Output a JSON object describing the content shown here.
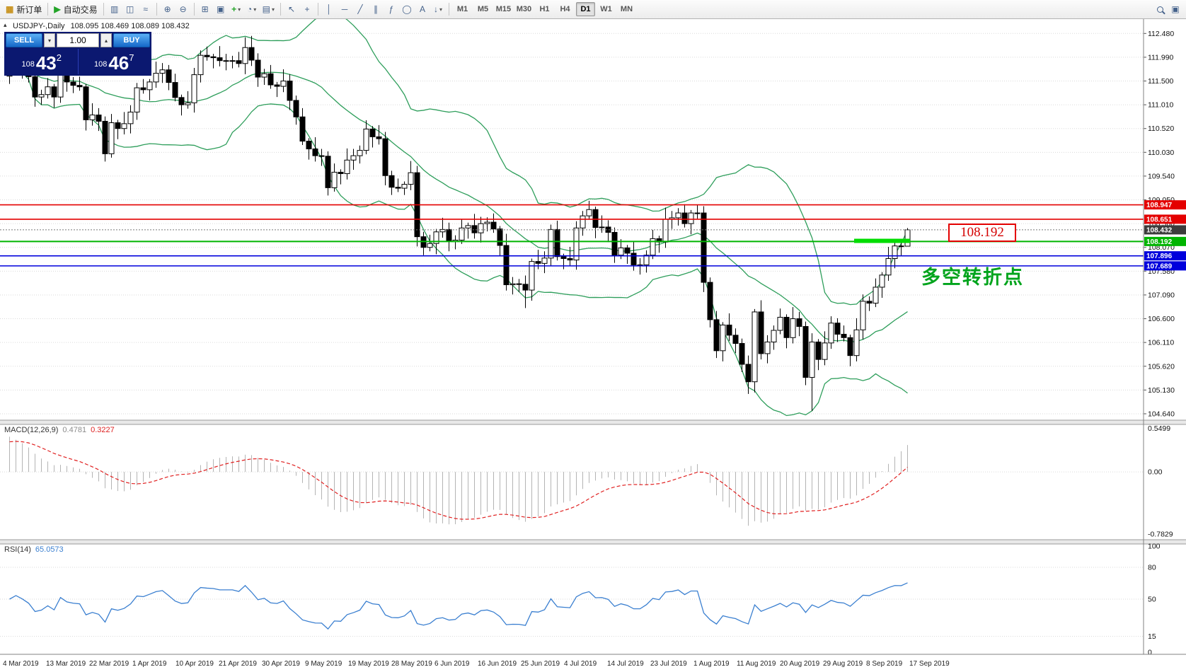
{
  "icons": {
    "dropdown": "▾",
    "spin_up": "▴",
    "panel_toggle": "▴",
    "community": "▣"
  },
  "toolbar": {
    "timeframes": [
      "M1",
      "M5",
      "M15",
      "M30",
      "H1",
      "H4",
      "D1",
      "W1",
      "MN"
    ],
    "active_timeframe": "D1",
    "tool_buttons": [
      {
        "name": "new-order-button",
        "glyph": "▦",
        "color": "#c79018",
        "label": "新订单"
      },
      {
        "sep": true
      },
      {
        "name": "autotrading-button",
        "glyph": "▶",
        "color": "#23a428",
        "label": "自动交易"
      },
      {
        "sep": true
      },
      {
        "name": "bar-chart-button",
        "glyph": "▥"
      },
      {
        "name": "candlestick-chart-button",
        "glyph": "◫"
      },
      {
        "name": "line-chart-button",
        "glyph": "≈"
      },
      {
        "sep": true
      },
      {
        "name": "zoom-in-button",
        "glyph": "⊕"
      },
      {
        "name": "zoom-out-button",
        "glyph": "⊖"
      },
      {
        "sep": true
      },
      {
        "name": "tile-windows-button",
        "glyph": "⊞"
      },
      {
        "name": "auto-arrange-button",
        "glyph": "▣"
      },
      {
        "name": "indicators-button",
        "glyph": "+",
        "color": "#23a428",
        "dropdown": true
      },
      {
        "name": "periods-button",
        "glyph": "◔",
        "dropdown": true
      },
      {
        "name": "templates-button",
        "glyph": "▤",
        "dropdown": true
      },
      {
        "sep": true
      },
      {
        "name": "cursor-button",
        "glyph": "↖"
      },
      {
        "name": "crosshair-button",
        "glyph": "+"
      },
      {
        "sep": true
      },
      {
        "name": "vertical-line-button",
        "glyph": "│"
      },
      {
        "name": "horizontal-line-button",
        "glyph": "─"
      },
      {
        "name": "trendline-button",
        "glyph": "╱"
      },
      {
        "name": "channel-button",
        "glyph": "∥"
      },
      {
        "name": "fibonacci-button",
        "glyph": "ƒ"
      },
      {
        "name": "shapes-button",
        "glyph": "◯"
      },
      {
        "name": "text-button",
        "glyph": "A"
      },
      {
        "name": "arrows-button",
        "glyph": "↓",
        "dropdown": true
      },
      {
        "sep": true
      }
    ]
  },
  "chart": {
    "symbol_title": "USDJPY-,Daily",
    "ohlc_text": "108.095 108.469 108.089 108.432",
    "annotation": "多空转折点",
    "price_label_box": "108.192",
    "trade_panel": {
      "sell_label": "SELL",
      "buy_label": "BUY",
      "volume": "1.00",
      "sell_small": "108",
      "sell_big": "43",
      "sell_sup": "2",
      "buy_small": "108",
      "buy_big": "46",
      "buy_sup": "7"
    }
  },
  "chart_data": {
    "type": "candlest­ick",
    "symbol": "USDJPY",
    "period": "Daily",
    "price_axis_ticks": [
      "112.480",
      "111.990",
      "111.500",
      "111.010",
      "110.520",
      "110.030",
      "109.540",
      "109.050",
      "108.560",
      "108.070",
      "107.580",
      "107.090",
      "106.600",
      "106.110",
      "105.620",
      "105.130",
      "104.640"
    ],
    "date_axis": [
      "4 Mar 2019",
      "13 Mar 2019",
      "22 Mar 2019",
      "1 Apr 2019",
      "10 Apr 2019",
      "21 Apr 2019",
      "30 Apr 2019",
      "9 May 2019",
      "19 May 2019",
      "28 May 2019",
      "6 Jun 2019",
      "16 Jun 2019",
      "25 Jun 2019",
      "4 Jul 2019",
      "14 Jul 2019",
      "23 Jul 2019",
      "1 Aug 2019",
      "11 Aug 2019",
      "20 Aug 2019",
      "29 Aug 2019",
      "8 Sep 2019",
      "17 Sep 2019"
    ],
    "hlines": [
      {
        "price": 108.947,
        "color": "#e40000",
        "label": "108.947",
        "width": 1.6
      },
      {
        "price": 108.651,
        "color": "#e40000",
        "label": "108.651",
        "width": 1.6
      },
      {
        "price": 108.192,
        "color": "#00b400",
        "label": "108.192",
        "width": 2
      },
      {
        "price": 107.896,
        "color": "#0000dc",
        "label": "107.896",
        "width": 1.6
      },
      {
        "price": 107.689,
        "color": "#0000dc",
        "label": "107.689",
        "width": 1.6
      }
    ],
    "current_price": {
      "value": 108.432,
      "label": "108.432"
    },
    "green_segment": {
      "price": 108.205,
      "from_candle": 133,
      "to_candle": 141,
      "color": "#00dd00",
      "width": 6
    },
    "bollinger": {
      "period": 20,
      "deviation": 2,
      "color": "#2e9e5b"
    },
    "macd": {
      "label": "MACD(12,26,9)",
      "value_main": "0.4781",
      "value_signal": "0.3227",
      "axis": [
        "0.5499",
        "0.00",
        "-0.7829"
      ]
    },
    "rsi": {
      "label": "RSI(14)",
      "value": "65.0573",
      "color": "#3a7fd0",
      "levels": [
        80,
        50,
        15
      ],
      "axis": [
        "100",
        "80",
        "50",
        "15",
        "0"
      ]
    },
    "candles": [
      [
        111.6,
        111.85,
        111.44,
        111.75
      ],
      [
        111.75,
        112.08,
        111.67,
        111.9
      ],
      [
        111.9,
        111.96,
        111.55,
        111.77
      ],
      [
        111.77,
        112.01,
        111.47,
        111.59
      ],
      [
        111.59,
        111.73,
        110.97,
        111.17
      ],
      [
        111.17,
        111.32,
        111.01,
        111.22
      ],
      [
        111.22,
        111.56,
        111.14,
        111.38
      ],
      [
        111.38,
        111.44,
        110.95,
        111.17
      ],
      [
        111.17,
        111.94,
        111.05,
        111.7
      ],
      [
        111.7,
        111.84,
        111.28,
        111.48
      ],
      [
        111.48,
        111.58,
        111.25,
        111.41
      ],
      [
        111.41,
        111.59,
        111.3,
        111.38
      ],
      [
        111.38,
        111.44,
        110.48,
        110.7
      ],
      [
        110.7,
        111.04,
        110.58,
        110.8
      ],
      [
        110.8,
        110.94,
        110.47,
        110.67
      ],
      [
        110.67,
        110.77,
        109.84,
        110.0
      ],
      [
        110.0,
        110.82,
        109.92,
        110.64
      ],
      [
        110.64,
        110.7,
        110.3,
        110.52
      ],
      [
        110.52,
        110.86,
        110.4,
        110.62
      ],
      [
        110.62,
        111.0,
        110.42,
        110.86
      ],
      [
        110.86,
        111.46,
        110.7,
        111.36
      ],
      [
        111.36,
        111.54,
        111.24,
        111.32
      ],
      [
        111.32,
        111.54,
        111.1,
        111.48
      ],
      [
        111.48,
        111.9,
        111.36,
        111.66
      ],
      [
        111.66,
        111.87,
        111.46,
        111.73
      ],
      [
        111.73,
        111.83,
        111.31,
        111.47
      ],
      [
        111.47,
        111.65,
        111.08,
        111.16
      ],
      [
        111.16,
        111.22,
        110.79,
        111.01
      ],
      [
        111.01,
        111.29,
        110.93,
        111.05
      ],
      [
        111.05,
        111.77,
        110.85,
        111.63
      ],
      [
        111.63,
        112.13,
        111.47,
        112.03
      ],
      [
        112.03,
        112.21,
        111.92,
        112.0
      ],
      [
        112.0,
        112.06,
        111.76,
        111.98
      ],
      [
        111.98,
        112.22,
        111.8,
        111.92
      ],
      [
        111.92,
        112.06,
        111.72,
        111.92
      ],
      [
        111.92,
        112.02,
        111.76,
        111.92
      ],
      [
        111.92,
        112.1,
        111.78,
        111.86
      ],
      [
        111.86,
        112.4,
        111.64,
        112.19
      ],
      [
        112.19,
        112.43,
        111.81,
        111.93
      ],
      [
        111.93,
        112.07,
        111.38,
        111.58
      ],
      [
        111.58,
        111.75,
        111.42,
        111.65
      ],
      [
        111.65,
        111.83,
        111.34,
        111.42
      ],
      [
        111.42,
        111.48,
        111.17,
        111.39
      ],
      [
        111.39,
        111.74,
        111.27,
        111.5
      ],
      [
        111.5,
        111.64,
        110.9,
        111.1
      ],
      [
        111.1,
        111.2,
        110.6,
        110.76
      ],
      [
        110.76,
        110.94,
        110.18,
        110.26
      ],
      [
        110.26,
        110.32,
        109.88,
        110.1
      ],
      [
        110.1,
        110.34,
        109.84,
        109.96
      ],
      [
        109.96,
        110.1,
        109.75,
        109.95
      ],
      [
        109.95,
        110.05,
        109.14,
        109.3
      ],
      [
        109.3,
        109.8,
        109.22,
        109.62
      ],
      [
        109.62,
        109.68,
        109.37,
        109.59
      ],
      [
        109.59,
        110.11,
        109.47,
        109.87
      ],
      [
        109.87,
        110.1,
        109.67,
        109.96
      ],
      [
        109.96,
        110.17,
        109.8,
        110.07
      ],
      [
        110.07,
        110.69,
        109.99,
        110.51
      ],
      [
        110.51,
        110.57,
        110.13,
        110.35
      ],
      [
        110.35,
        110.59,
        110.19,
        110.31
      ],
      [
        110.31,
        110.45,
        109.35,
        109.55
      ],
      [
        109.55,
        109.65,
        109.15,
        109.31
      ],
      [
        109.31,
        109.49,
        109.21,
        109.29
      ],
      [
        109.29,
        109.43,
        109.15,
        109.37
      ],
      [
        109.37,
        109.85,
        109.25,
        109.61
      ],
      [
        109.61,
        109.75,
        108.09,
        108.29
      ],
      [
        108.29,
        108.39,
        107.91,
        108.07
      ],
      [
        108.07,
        108.33,
        107.99,
        108.15
      ],
      [
        108.15,
        108.45,
        107.93,
        108.39
      ],
      [
        108.39,
        108.68,
        108.27,
        108.44
      ],
      [
        108.44,
        108.58,
        107.99,
        108.19
      ],
      [
        108.19,
        108.32,
        108.03,
        108.22
      ],
      [
        108.22,
        108.65,
        108.14,
        108.47
      ],
      [
        108.47,
        108.58,
        108.25,
        108.52
      ],
      [
        108.52,
        108.76,
        108.25,
        108.37
      ],
      [
        108.37,
        108.7,
        108.17,
        108.56
      ],
      [
        108.56,
        108.69,
        108.4,
        108.59
      ],
      [
        108.59,
        108.77,
        108.37,
        108.45
      ],
      [
        108.45,
        108.51,
        107.89,
        108.11
      ],
      [
        108.11,
        108.35,
        107.18,
        107.3
      ],
      [
        107.3,
        107.46,
        107.1,
        107.32
      ],
      [
        107.32,
        107.42,
        107.15,
        107.31
      ],
      [
        107.31,
        107.49,
        106.82,
        107.19
      ],
      [
        107.19,
        107.84,
        106.97,
        107.78
      ],
      [
        107.78,
        108.02,
        107.62,
        107.74
      ],
      [
        107.74,
        107.99,
        107.54,
        107.85
      ],
      [
        107.85,
        108.54,
        107.69,
        108.44
      ],
      [
        108.44,
        108.62,
        107.8,
        107.88
      ],
      [
        107.88,
        107.94,
        107.62,
        107.84
      ],
      [
        107.84,
        108.08,
        107.69,
        107.81
      ],
      [
        107.81,
        108.61,
        107.61,
        108.47
      ],
      [
        108.47,
        108.82,
        108.31,
        108.72
      ],
      [
        108.72,
        109.03,
        108.64,
        108.85
      ],
      [
        108.85,
        108.91,
        108.26,
        108.48
      ],
      [
        108.48,
        108.73,
        108.37,
        108.49
      ],
      [
        108.49,
        108.63,
        108.18,
        108.38
      ],
      [
        108.38,
        108.48,
        107.75,
        107.91
      ],
      [
        107.91,
        108.24,
        107.83,
        108.06
      ],
      [
        108.06,
        108.12,
        107.73,
        107.95
      ],
      [
        107.95,
        108.19,
        107.59,
        107.71
      ],
      [
        107.71,
        107.85,
        107.51,
        107.71
      ],
      [
        107.71,
        108.01,
        107.55,
        107.91
      ],
      [
        107.91,
        108.43,
        107.83,
        108.25
      ],
      [
        108.25,
        108.31,
        107.96,
        108.18
      ],
      [
        108.18,
        108.89,
        108.06,
        108.65
      ],
      [
        108.65,
        108.82,
        108.45,
        108.68
      ],
      [
        108.68,
        108.88,
        108.52,
        108.78
      ],
      [
        108.78,
        108.96,
        108.48,
        108.56
      ],
      [
        108.56,
        108.84,
        108.34,
        108.78
      ],
      [
        108.78,
        108.95,
        108.66,
        108.78
      ],
      [
        108.78,
        108.92,
        107.15,
        107.35
      ],
      [
        107.35,
        107.45,
        106.42,
        106.58
      ],
      [
        106.58,
        106.76,
        105.79,
        105.94
      ],
      [
        105.94,
        106.53,
        105.72,
        106.47
      ],
      [
        106.47,
        106.71,
        106.14,
        106.26
      ],
      [
        106.26,
        106.4,
        105.89,
        106.09
      ],
      [
        106.09,
        106.19,
        105.5,
        105.66
      ],
      [
        105.66,
        105.84,
        105.05,
        105.3
      ],
      [
        105.3,
        106.8,
        105.08,
        106.74
      ],
      [
        106.74,
        106.98,
        105.76,
        105.88
      ],
      [
        105.88,
        106.26,
        105.68,
        106.12
      ],
      [
        106.12,
        106.46,
        105.96,
        106.36
      ],
      [
        106.36,
        106.81,
        106.28,
        106.63
      ],
      [
        106.63,
        106.69,
        105.99,
        106.21
      ],
      [
        106.21,
        106.84,
        106.09,
        106.6
      ],
      [
        106.6,
        106.74,
        106.24,
        106.44
      ],
      [
        106.44,
        106.54,
        105.23,
        105.39
      ],
      [
        105.39,
        106.3,
        104.7,
        106.12
      ],
      [
        106.12,
        106.18,
        105.54,
        105.76
      ],
      [
        105.76,
        106.34,
        105.64,
        106.1
      ],
      [
        106.1,
        106.65,
        105.98,
        106.51
      ],
      [
        106.51,
        106.61,
        106.12,
        106.28
      ],
      [
        106.28,
        106.46,
        106.13,
        106.21
      ],
      [
        106.21,
        106.27,
        105.62,
        105.84
      ],
      [
        105.84,
        106.61,
        105.72,
        106.37
      ],
      [
        106.37,
        107.1,
        106.17,
        106.96
      ],
      [
        106.96,
        107.06,
        106.76,
        106.92
      ],
      [
        106.92,
        107.43,
        106.84,
        107.25
      ],
      [
        107.25,
        107.56,
        107.03,
        107.5
      ],
      [
        107.5,
        108.08,
        107.38,
        107.84
      ],
      [
        107.84,
        108.24,
        107.64,
        108.1
      ],
      [
        108.1,
        108.2,
        107.89,
        108.09
      ],
      [
        108.095,
        108.469,
        108.089,
        108.432
      ]
    ]
  }
}
